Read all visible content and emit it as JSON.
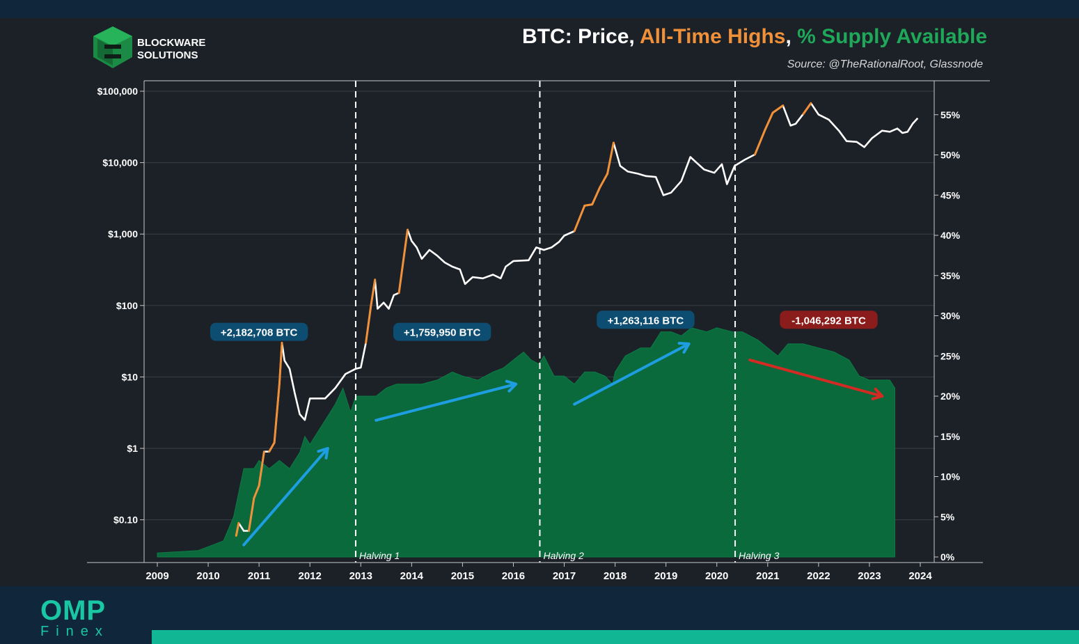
{
  "logo": {
    "line1": "BLOCKWARE",
    "line2": "SOLUTIONS"
  },
  "chart_data": {
    "type": "line",
    "title_parts": [
      {
        "text": "BTC: Price, ",
        "color": "#ffffff"
      },
      {
        "text": "All-Time Highs",
        "color": "#f0913a"
      },
      {
        "text": ", ",
        "color": "#ffffff"
      },
      {
        "text": "% Supply Available",
        "color": "#1fa85a"
      }
    ],
    "subtitle": "Source: @TheRationalRoot, Glassnode",
    "x_ticks": [
      "2009",
      "2010",
      "2011",
      "2012",
      "2013",
      "2014",
      "2015",
      "2016",
      "2017",
      "2018",
      "2019",
      "2020",
      "2021",
      "2022",
      "2023",
      "2024"
    ],
    "y_left_ticks": [
      {
        "label": "$100,000",
        "value": 100000
      },
      {
        "label": "$10,000",
        "value": 10000
      },
      {
        "label": "$1,000",
        "value": 1000
      },
      {
        "label": "$100",
        "value": 100
      },
      {
        "label": "$10",
        "value": 10
      },
      {
        "label": "$1",
        "value": 1
      },
      {
        "label": "$0.10",
        "value": 0.1
      }
    ],
    "y_left_scale": "log",
    "y_right_ticks": [
      "0%",
      "5%",
      "10%",
      "15%",
      "20%",
      "25%",
      "30%",
      "35%",
      "40%",
      "45%",
      "50%",
      "55%"
    ],
    "y_right_range": [
      0,
      58
    ],
    "series": [
      {
        "name": "Price",
        "color": "#ffffff",
        "ath_color": "#f0913a",
        "points": [
          [
            2010.55,
            0.06
          ],
          [
            2010.6,
            0.09
          ],
          [
            2010.7,
            0.07
          ],
          [
            2010.8,
            0.07
          ],
          [
            2010.9,
            0.2
          ],
          [
            2011.0,
            0.3
          ],
          [
            2011.1,
            0.9
          ],
          [
            2011.2,
            0.9
          ],
          [
            2011.3,
            1.2
          ],
          [
            2011.4,
            8
          ],
          [
            2011.45,
            30
          ],
          [
            2011.5,
            17
          ],
          [
            2011.6,
            13
          ],
          [
            2011.7,
            6
          ],
          [
            2011.8,
            3
          ],
          [
            2011.9,
            2.5
          ],
          [
            2012.0,
            5
          ],
          [
            2012.1,
            5
          ],
          [
            2012.3,
            5
          ],
          [
            2012.5,
            7
          ],
          [
            2012.7,
            11
          ],
          [
            2012.9,
            13
          ],
          [
            2013.0,
            13.5
          ],
          [
            2013.1,
            30
          ],
          [
            2013.2,
            100
          ],
          [
            2013.28,
            230
          ],
          [
            2013.33,
            90
          ],
          [
            2013.45,
            110
          ],
          [
            2013.55,
            90
          ],
          [
            2013.65,
            140
          ],
          [
            2013.75,
            150
          ],
          [
            2013.85,
            500
          ],
          [
            2013.92,
            1150
          ],
          [
            2014.0,
            800
          ],
          [
            2014.1,
            650
          ],
          [
            2014.2,
            450
          ],
          [
            2014.35,
            600
          ],
          [
            2014.5,
            500
          ],
          [
            2014.65,
            400
          ],
          [
            2014.8,
            350
          ],
          [
            2014.95,
            320
          ],
          [
            2015.05,
            200
          ],
          [
            2015.2,
            250
          ],
          [
            2015.4,
            240
          ],
          [
            2015.6,
            270
          ],
          [
            2015.75,
            240
          ],
          [
            2015.85,
            350
          ],
          [
            2016.0,
            420
          ],
          [
            2016.3,
            430
          ],
          [
            2016.45,
            650
          ],
          [
            2016.6,
            600
          ],
          [
            2016.75,
            650
          ],
          [
            2016.9,
            780
          ],
          [
            2017.0,
            950
          ],
          [
            2017.2,
            1100
          ],
          [
            2017.4,
            2500
          ],
          [
            2017.55,
            2600
          ],
          [
            2017.7,
            4500
          ],
          [
            2017.85,
            7000
          ],
          [
            2017.97,
            19000
          ],
          [
            2018.1,
            9000
          ],
          [
            2018.25,
            7500
          ],
          [
            2018.45,
            7000
          ],
          [
            2018.6,
            6500
          ],
          [
            2018.8,
            6300
          ],
          [
            2018.95,
            3500
          ],
          [
            2019.1,
            3800
          ],
          [
            2019.3,
            5500
          ],
          [
            2019.48,
            12000
          ],
          [
            2019.6,
            10000
          ],
          [
            2019.75,
            8000
          ],
          [
            2019.95,
            7200
          ],
          [
            2020.1,
            9500
          ],
          [
            2020.2,
            5000
          ],
          [
            2020.35,
            9000
          ],
          [
            2020.55,
            11000
          ],
          [
            2020.75,
            13000
          ],
          [
            2020.95,
            29000
          ],
          [
            2021.1,
            50000
          ],
          [
            2021.3,
            63000
          ],
          [
            2021.45,
            33000
          ],
          [
            2021.55,
            35000
          ],
          [
            2021.7,
            48000
          ],
          [
            2021.85,
            68000
          ],
          [
            2022.0,
            47000
          ],
          [
            2022.2,
            40000
          ],
          [
            2022.4,
            28000
          ],
          [
            2022.55,
            20000
          ],
          [
            2022.75,
            19500
          ],
          [
            2022.9,
            16500
          ],
          [
            2023.05,
            22000
          ],
          [
            2023.25,
            28000
          ],
          [
            2023.4,
            27000
          ],
          [
            2023.55,
            30000
          ],
          [
            2023.65,
            26000
          ],
          [
            2023.75,
            27000
          ],
          [
            2023.85,
            35000
          ],
          [
            2023.95,
            42000
          ]
        ]
      },
      {
        "name": "% Supply Available",
        "color": "#0a6a3c",
        "points": [
          [
            2009.0,
            0.5
          ],
          [
            2009.8,
            0.8
          ],
          [
            2010.3,
            2
          ],
          [
            2010.5,
            5
          ],
          [
            2010.6,
            8
          ],
          [
            2010.7,
            11
          ],
          [
            2010.9,
            11
          ],
          [
            2011.0,
            12
          ],
          [
            2011.2,
            11
          ],
          [
            2011.4,
            12
          ],
          [
            2011.6,
            11
          ],
          [
            2011.8,
            13
          ],
          [
            2011.9,
            15
          ],
          [
            2012.0,
            14
          ],
          [
            2012.2,
            16
          ],
          [
            2012.4,
            18
          ],
          [
            2012.5,
            19
          ],
          [
            2012.65,
            21
          ],
          [
            2012.8,
            18
          ],
          [
            2012.9,
            20
          ],
          [
            2013.0,
            20
          ],
          [
            2013.3,
            20
          ],
          [
            2013.5,
            21
          ],
          [
            2013.7,
            21.5
          ],
          [
            2013.9,
            21.5
          ],
          [
            2014.2,
            21.5
          ],
          [
            2014.5,
            22
          ],
          [
            2014.8,
            23
          ],
          [
            2015.0,
            22.5
          ],
          [
            2015.3,
            22
          ],
          [
            2015.6,
            23
          ],
          [
            2015.8,
            23.5
          ],
          [
            2016.0,
            24.5
          ],
          [
            2016.2,
            25.5
          ],
          [
            2016.35,
            24.5
          ],
          [
            2016.5,
            24
          ],
          [
            2016.6,
            25
          ],
          [
            2016.8,
            22.5
          ],
          [
            2017.0,
            22.5
          ],
          [
            2017.2,
            21.5
          ],
          [
            2017.4,
            23
          ],
          [
            2017.6,
            23
          ],
          [
            2017.8,
            22.5
          ],
          [
            2017.95,
            21.5
          ],
          [
            2018.0,
            23
          ],
          [
            2018.2,
            25
          ],
          [
            2018.5,
            26
          ],
          [
            2018.7,
            26
          ],
          [
            2018.9,
            28
          ],
          [
            2019.1,
            28
          ],
          [
            2019.3,
            27.5
          ],
          [
            2019.5,
            28.5
          ],
          [
            2019.8,
            28
          ],
          [
            2020.0,
            28.5
          ],
          [
            2020.3,
            28
          ],
          [
            2020.5,
            28
          ],
          [
            2020.8,
            27
          ],
          [
            2021.0,
            26
          ],
          [
            2021.2,
            25
          ],
          [
            2021.4,
            26.5
          ],
          [
            2021.7,
            26.5
          ],
          [
            2022.0,
            26
          ],
          [
            2022.3,
            25.5
          ],
          [
            2022.6,
            24.5
          ],
          [
            2022.8,
            22.5
          ],
          [
            2023.0,
            22
          ],
          [
            2023.2,
            22
          ],
          [
            2023.4,
            22
          ],
          [
            2023.5,
            21
          ]
        ]
      }
    ],
    "halvings": [
      {
        "label": "Halving 1",
        "x": 2012.9
      },
      {
        "label": "Halving 2",
        "x": 2016.52
      },
      {
        "label": "Halving 3",
        "x": 2020.36
      }
    ],
    "annotations": [
      {
        "label": "+2,182,708 BTC",
        "color": "#0e4d72",
        "anchor_year": 2011.0,
        "anchor_pct": 28
      },
      {
        "label": "+1,759,950 BTC",
        "color": "#0e4d72",
        "anchor_year": 2014.6,
        "anchor_pct": 28
      },
      {
        "label": "+1,263,116 BTC",
        "color": "#0e4d72",
        "anchor_year": 2018.6,
        "anchor_pct": 29.5
      },
      {
        "label": "-1,046,292 BTC",
        "color": "#8a1c1c",
        "anchor_year": 2022.2,
        "anchor_pct": 29.5
      }
    ],
    "arrows": [
      {
        "color": "#1e9ee0",
        "from": [
          2010.7,
          1.5
        ],
        "to": [
          2012.35,
          13.5
        ]
      },
      {
        "color": "#1e9ee0",
        "from": [
          2013.3,
          17
        ],
        "to": [
          2016.05,
          21.5
        ]
      },
      {
        "color": "#1e9ee0",
        "from": [
          2017.2,
          19
        ],
        "to": [
          2019.45,
          26.5
        ]
      },
      {
        "color": "#d42a24",
        "from": [
          2020.65,
          24.5
        ],
        "to": [
          2023.25,
          20
        ]
      }
    ],
    "grid": true
  },
  "brand": {
    "name": "OMP",
    "sub": "Finex"
  }
}
